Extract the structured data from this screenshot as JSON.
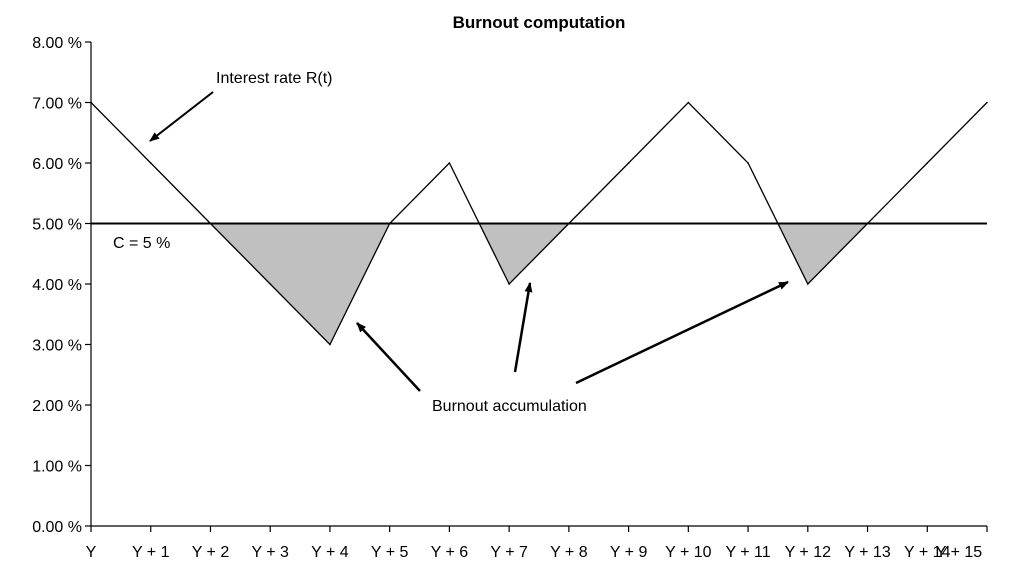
{
  "chart_data": {
    "type": "line",
    "title": "Burnout computation",
    "xlabel": "",
    "ylabel": "",
    "categories": [
      "Y",
      "Y + 1",
      "Y + 2",
      "Y + 3",
      "Y + 4",
      "Y + 5",
      "Y + 6",
      "Y + 7",
      "Y + 8",
      "Y + 9",
      "Y + 10",
      "Y + 11",
      "Y + 12",
      "Y + 13",
      "Y + 14",
      "Y + 15"
    ],
    "series": [
      {
        "values": [
          7.0,
          6.0,
          5.0,
          4.0,
          3.0,
          5.0,
          6.0,
          4.0,
          5.0,
          6.0,
          7.0,
          6.0,
          4.0,
          5.0,
          6.0,
          7.0
        ]
      }
    ],
    "reference_line": {
      "value": 5.0,
      "label": "C = 5 %"
    },
    "ylim": [
      0,
      8
    ],
    "yticks": [
      0,
      1,
      2,
      3,
      4,
      5,
      6,
      7,
      8
    ],
    "ytick_labels": [
      "0.00 %",
      "1.00 %",
      "2.00 %",
      "3.00 %",
      "4.00 %",
      "5.00 %",
      "6.00 %",
      "7.00 %",
      "8.00 %"
    ],
    "shaded_regions": "series below reference line",
    "annotations": {
      "series_label": "Interest rate R(t)",
      "burnout_label": "Burnout accumulation"
    },
    "grid": false,
    "legend": "none",
    "colors": {
      "line": "#000000",
      "fill": "#c0c0c0",
      "axis": "#000000"
    }
  }
}
